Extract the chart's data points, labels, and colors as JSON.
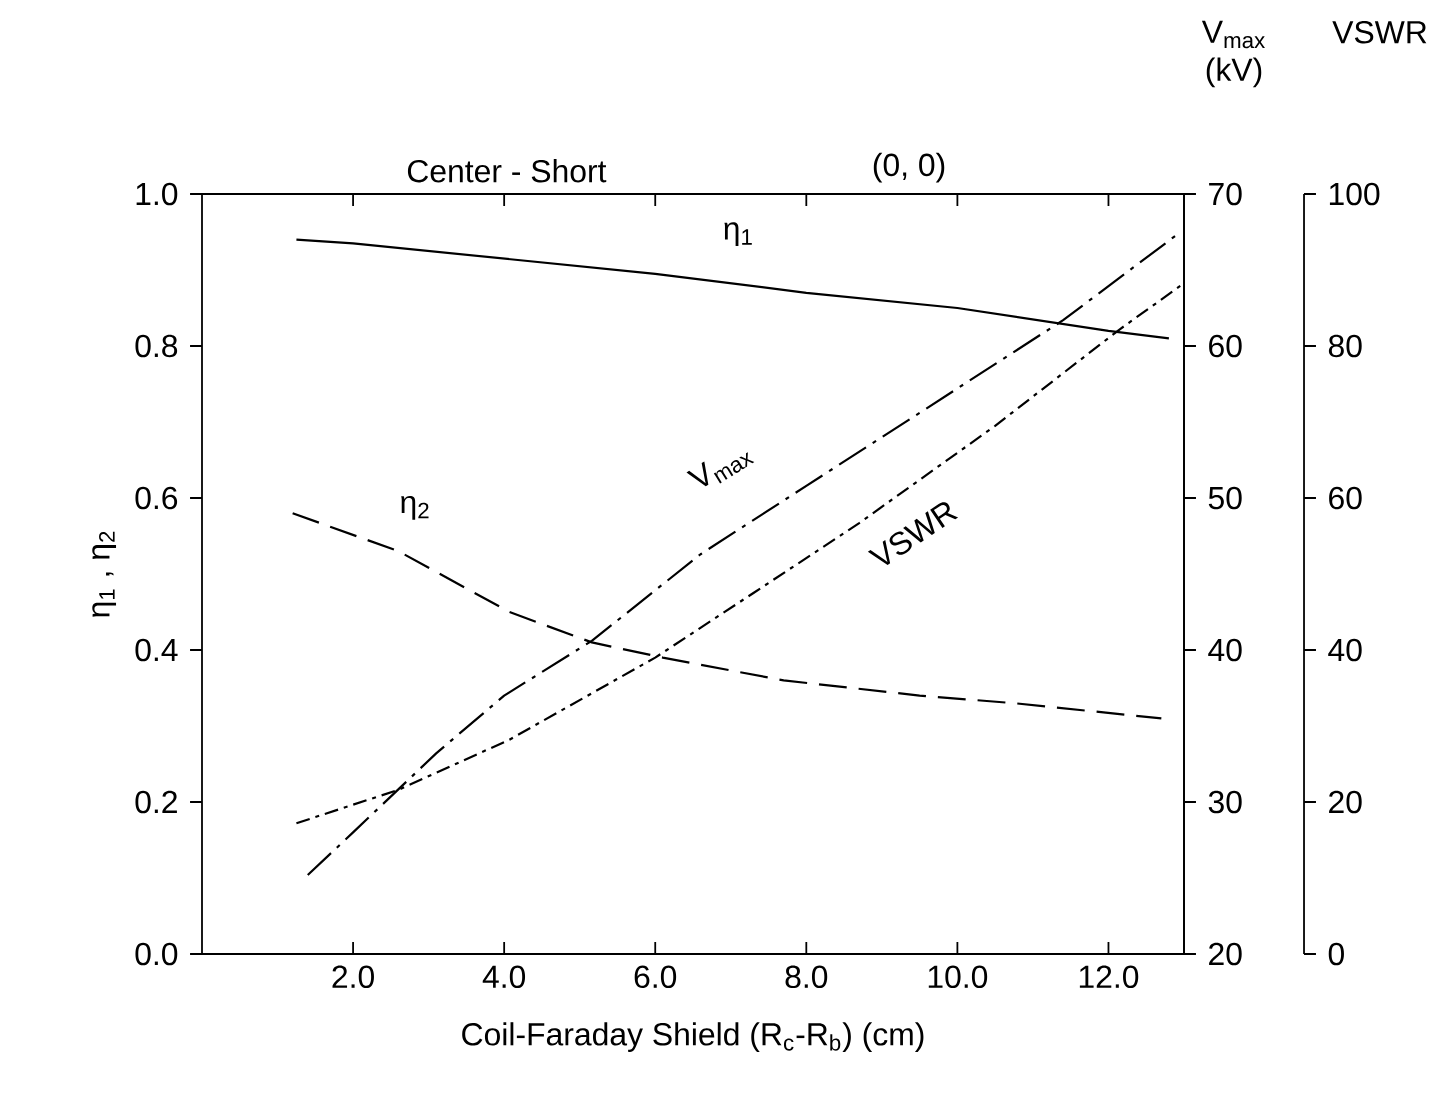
{
  "chart_data": {
    "type": "line",
    "xlabel": "Coil-Faraday Shield  (R$_{c}$-R$_{b}$)  (cm)",
    "ylabel": "η$_{1}$ , η$_{2}$",
    "y2label": "V$_{max}$ (kV)",
    "y3label": "VSWR",
    "annotations": [
      "Center - Short",
      "(0, 0)"
    ],
    "xlim": [
      0,
      13
    ],
    "ylim": [
      0,
      1
    ],
    "y2lim": [
      20,
      70
    ],
    "y3lim": [
      0,
      100
    ],
    "xticks": [
      {
        "value": 2,
        "label": "2.0"
      },
      {
        "value": 4,
        "label": "4.0"
      },
      {
        "value": 6,
        "label": "6.0"
      },
      {
        "value": 8,
        "label": "8.0"
      },
      {
        "value": 10,
        "label": "10.0"
      },
      {
        "value": 12,
        "label": "12.0"
      }
    ],
    "yticks": [
      {
        "value": 0,
        "label": "0.0"
      },
      {
        "value": 0.2,
        "label": "0.2"
      },
      {
        "value": 0.4,
        "label": "0.4"
      },
      {
        "value": 0.6,
        "label": "0.6"
      },
      {
        "value": 0.8,
        "label": "0.8"
      },
      {
        "value": 1,
        "label": "1.0"
      }
    ],
    "y2ticks": [
      20,
      30,
      40,
      50,
      60,
      70
    ],
    "y3ticks": [
      0,
      20,
      40,
      60,
      80,
      100
    ],
    "grid": false,
    "marker": "none",
    "series": [
      {
        "name": "η$_{1}$",
        "color": "#000000",
        "line_style": "solid",
        "x": [
          1.25,
          2,
          4,
          6,
          8,
          10,
          12,
          12.8
        ],
        "values": [
          0.94,
          0.935,
          0.915,
          0.895,
          0.87,
          0.85,
          0.82,
          0.81
        ]
      },
      {
        "name": "η$_{2}$",
        "color": "#000000",
        "line_style": "dashed",
        "x": [
          1.2,
          2.6,
          4.07,
          5.16,
          6.1,
          7.7,
          9.5,
          10.75,
          12.7
        ],
        "values": [
          0.58,
          0.53,
          0.45,
          0.41,
          0.39,
          0.36,
          0.34,
          0.33,
          0.31
        ]
      },
      {
        "name": "V$_{max}$",
        "color": "#000000",
        "line_style": "dashdot",
        "axis": "y2",
        "x": [
          1.4,
          2,
          3.1,
          4,
          5.16,
          6.6,
          8,
          9.5,
          11.4,
          12.9
        ],
        "values": [
          25.2,
          28,
          33.2,
          37,
          40.6,
          46.3,
          50.8,
          55.6,
          61.7,
          67.3
        ]
      },
      {
        "name": "VSWR",
        "color": "#000000",
        "line_style": "dashdot",
        "axis": "y3",
        "x": [
          1.25,
          2.6,
          4.07,
          6,
          7.3,
          8.7,
          10.5,
          12.15,
          12.95
        ],
        "values": [
          17.2,
          21.6,
          28.2,
          39,
          47.5,
          56.7,
          69.5,
          82.2,
          87.9
        ]
      }
    ]
  }
}
